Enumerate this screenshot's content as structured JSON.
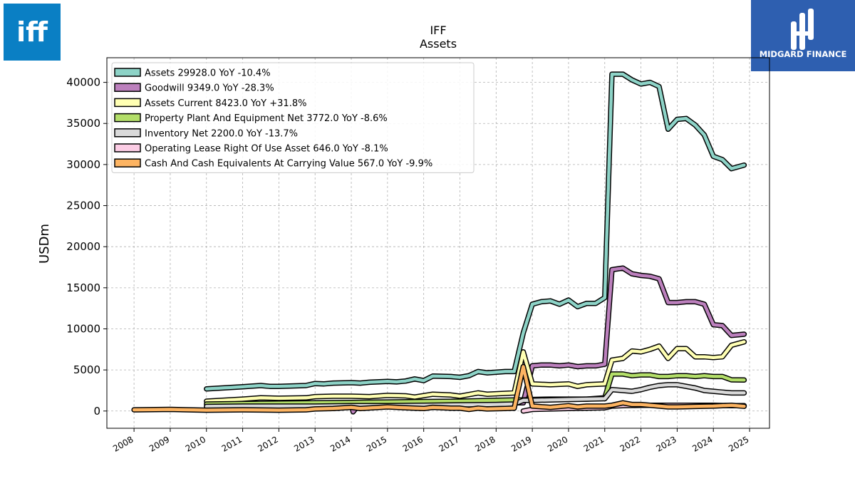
{
  "brand": {
    "left_logo_text": "iff",
    "left_logo_color": "#0a7fc4",
    "right_logo_text": "MIDGARD FINANCE",
    "right_logo_color": "#2e5fb0"
  },
  "chart_data": {
    "type": "line",
    "title": "IFF",
    "subtitle": "Assets",
    "xlabel": "",
    "ylabel": "USDm",
    "xlim": [
      2007.25,
      2025.55
    ],
    "ylim": [
      -2100,
      43000
    ],
    "grid": true,
    "legend_position": "top-left",
    "x_ticks": [
      "2008",
      "2009",
      "2010",
      "2011",
      "2012",
      "2013",
      "2014",
      "2015",
      "2016",
      "2017",
      "2018",
      "2019",
      "2020",
      "2021",
      "2022",
      "2023",
      "2024",
      "2025"
    ],
    "y_ticks": [
      0,
      5000,
      10000,
      15000,
      20000,
      25000,
      30000,
      35000,
      40000
    ],
    "series": [
      {
        "name": "Assets",
        "legend": "Assets  29928.0 YoY -10.4%",
        "color": "#8dd3c7",
        "points": [
          [
            2010.0,
            2700
          ],
          [
            2011.0,
            2950
          ],
          [
            2011.5,
            3100
          ],
          [
            2011.75,
            3000
          ],
          [
            2012.0,
            3000
          ],
          [
            2012.75,
            3100
          ],
          [
            2013.0,
            3350
          ],
          [
            2013.25,
            3300
          ],
          [
            2013.5,
            3400
          ],
          [
            2014.0,
            3450
          ],
          [
            2014.25,
            3400
          ],
          [
            2014.5,
            3500
          ],
          [
            2015.0,
            3600
          ],
          [
            2015.25,
            3550
          ],
          [
            2015.5,
            3650
          ],
          [
            2015.75,
            3900
          ],
          [
            2016.0,
            3700
          ],
          [
            2016.25,
            4250
          ],
          [
            2016.75,
            4200
          ],
          [
            2017.0,
            4100
          ],
          [
            2017.25,
            4300
          ],
          [
            2017.5,
            4800
          ],
          [
            2017.75,
            4650
          ],
          [
            2018.25,
            4800
          ],
          [
            2018.5,
            4800
          ],
          [
            2018.75,
            9500
          ],
          [
            2019.0,
            13000
          ],
          [
            2019.25,
            13300
          ],
          [
            2019.5,
            13400
          ],
          [
            2019.75,
            13000
          ],
          [
            2020.0,
            13500
          ],
          [
            2020.25,
            12700
          ],
          [
            2020.5,
            13100
          ],
          [
            2020.75,
            13100
          ],
          [
            2021.0,
            13800
          ],
          [
            2021.2,
            41000
          ],
          [
            2021.5,
            41000
          ],
          [
            2021.75,
            40300
          ],
          [
            2022.0,
            39800
          ],
          [
            2022.25,
            40000
          ],
          [
            2022.5,
            39500
          ],
          [
            2022.75,
            34300
          ],
          [
            2023.0,
            35500
          ],
          [
            2023.25,
            35600
          ],
          [
            2023.5,
            34800
          ],
          [
            2023.75,
            33600
          ],
          [
            2024.0,
            31000
          ],
          [
            2024.25,
            30600
          ],
          [
            2024.5,
            29500
          ],
          [
            2024.85,
            29928
          ]
        ]
      },
      {
        "name": "Goodwill",
        "legend": "Goodwill  9349.0 YoY -28.3%",
        "color": "#bc80bd",
        "points": [
          [
            2013.0,
            1000
          ],
          [
            2014.0,
            1000
          ],
          [
            2014.05,
            -100
          ],
          [
            2014.25,
            1000
          ],
          [
            2015.0,
            1000
          ],
          [
            2016.0,
            1000
          ],
          [
            2017.0,
            1000
          ],
          [
            2018.0,
            1000
          ],
          [
            2018.5,
            1000
          ],
          [
            2018.75,
            1000
          ],
          [
            2019.0,
            5500
          ],
          [
            2019.25,
            5600
          ],
          [
            2019.5,
            5600
          ],
          [
            2019.75,
            5500
          ],
          [
            2020.0,
            5600
          ],
          [
            2020.25,
            5400
          ],
          [
            2020.5,
            5500
          ],
          [
            2020.75,
            5500
          ],
          [
            2021.0,
            5700
          ],
          [
            2021.2,
            17200
          ],
          [
            2021.5,
            17400
          ],
          [
            2021.75,
            16700
          ],
          [
            2022.0,
            16500
          ],
          [
            2022.25,
            16400
          ],
          [
            2022.5,
            16100
          ],
          [
            2022.75,
            13200
          ],
          [
            2023.0,
            13200
          ],
          [
            2023.25,
            13300
          ],
          [
            2023.5,
            13300
          ],
          [
            2023.75,
            13000
          ],
          [
            2024.0,
            10500
          ],
          [
            2024.25,
            10400
          ],
          [
            2024.5,
            9200
          ],
          [
            2024.85,
            9349
          ]
        ]
      },
      {
        "name": "Assets Current",
        "legend": "Assets Current  8423.0 YoY +31.8%",
        "color": "#ffffb3",
        "points": [
          [
            2010.0,
            1200
          ],
          [
            2011.0,
            1450
          ],
          [
            2011.5,
            1600
          ],
          [
            2012.0,
            1550
          ],
          [
            2012.75,
            1600
          ],
          [
            2013.0,
            1750
          ],
          [
            2013.5,
            1800
          ],
          [
            2014.0,
            1800
          ],
          [
            2014.5,
            1750
          ],
          [
            2015.0,
            1900
          ],
          [
            2015.5,
            1850
          ],
          [
            2015.75,
            1700
          ],
          [
            2016.25,
            2050
          ],
          [
            2016.75,
            1950
          ],
          [
            2017.0,
            1800
          ],
          [
            2017.5,
            2200
          ],
          [
            2017.75,
            2050
          ],
          [
            2018.5,
            2200
          ],
          [
            2018.75,
            7200
          ],
          [
            2019.0,
            3300
          ],
          [
            2019.5,
            3200
          ],
          [
            2020.0,
            3300
          ],
          [
            2020.25,
            3000
          ],
          [
            2020.5,
            3200
          ],
          [
            2021.0,
            3300
          ],
          [
            2021.2,
            6200
          ],
          [
            2021.5,
            6400
          ],
          [
            2021.75,
            7300
          ],
          [
            2022.0,
            7200
          ],
          [
            2022.25,
            7500
          ],
          [
            2022.5,
            7900
          ],
          [
            2022.75,
            6400
          ],
          [
            2023.0,
            7600
          ],
          [
            2023.25,
            7600
          ],
          [
            2023.5,
            6600
          ],
          [
            2023.75,
            6600
          ],
          [
            2024.0,
            6500
          ],
          [
            2024.25,
            6600
          ],
          [
            2024.5,
            8000
          ],
          [
            2024.85,
            8423
          ]
        ]
      },
      {
        "name": "Property Plant And Equipment Net",
        "legend": "Property Plant And Equipment Net  3772.0 YoY -8.6%",
        "color": "#b3de69",
        "points": [
          [
            2010.0,
            850
          ],
          [
            2011.0,
            900
          ],
          [
            2012.0,
            950
          ],
          [
            2013.0,
            1000
          ],
          [
            2014.0,
            1050
          ],
          [
            2015.0,
            1100
          ],
          [
            2016.0,
            1150
          ],
          [
            2017.0,
            1200
          ],
          [
            2018.0,
            1300
          ],
          [
            2018.5,
            1350
          ],
          [
            2018.75,
            1350
          ],
          [
            2019.0,
            1400
          ],
          [
            2019.5,
            1450
          ],
          [
            2020.0,
            1450
          ],
          [
            2020.5,
            1450
          ],
          [
            2021.0,
            1600
          ],
          [
            2021.2,
            4500
          ],
          [
            2021.5,
            4500
          ],
          [
            2021.75,
            4300
          ],
          [
            2022.0,
            4400
          ],
          [
            2022.25,
            4400
          ],
          [
            2022.5,
            4200
          ],
          [
            2022.75,
            4200
          ],
          [
            2023.0,
            4300
          ],
          [
            2023.25,
            4300
          ],
          [
            2023.5,
            4200
          ],
          [
            2023.75,
            4300
          ],
          [
            2024.0,
            4200
          ],
          [
            2024.25,
            4200
          ],
          [
            2024.5,
            3800
          ],
          [
            2024.85,
            3772
          ]
        ]
      },
      {
        "name": "Inventory Net",
        "legend": "Inventory Net  2200.0 YoY -13.7%",
        "color": "#d9d9d9",
        "points": [
          [
            2010.0,
            550
          ],
          [
            2011.0,
            600
          ],
          [
            2012.0,
            600
          ],
          [
            2013.0,
            600
          ],
          [
            2014.0,
            650
          ],
          [
            2015.0,
            650
          ],
          [
            2016.0,
            700
          ],
          [
            2017.0,
            750
          ],
          [
            2018.0,
            800
          ],
          [
            2018.5,
            850
          ],
          [
            2018.75,
            1300
          ],
          [
            2019.0,
            1300
          ],
          [
            2019.5,
            1350
          ],
          [
            2020.0,
            1400
          ],
          [
            2020.5,
            1450
          ],
          [
            2021.0,
            1500
          ],
          [
            2021.2,
            2600
          ],
          [
            2021.5,
            2500
          ],
          [
            2021.75,
            2400
          ],
          [
            2022.0,
            2600
          ],
          [
            2022.25,
            2900
          ],
          [
            2022.5,
            3100
          ],
          [
            2022.75,
            3200
          ],
          [
            2023.0,
            3200
          ],
          [
            2023.25,
            3000
          ],
          [
            2023.5,
            2800
          ],
          [
            2023.75,
            2500
          ],
          [
            2024.0,
            2400
          ],
          [
            2024.25,
            2300
          ],
          [
            2024.5,
            2200
          ],
          [
            2024.85,
            2200
          ]
        ]
      },
      {
        "name": "Operating Lease Right Of Use Asset",
        "legend": "Operating Lease Right Of Use Asset  646.0 YoY -8.1%",
        "color": "#fccde5",
        "points": [
          [
            2018.75,
            0
          ],
          [
            2019.0,
            200
          ],
          [
            2019.5,
            250
          ],
          [
            2020.0,
            300
          ],
          [
            2020.5,
            350
          ],
          [
            2021.0,
            400
          ],
          [
            2021.2,
            600
          ],
          [
            2021.5,
            650
          ],
          [
            2022.0,
            700
          ],
          [
            2022.5,
            700
          ],
          [
            2023.0,
            700
          ],
          [
            2023.5,
            700
          ],
          [
            2024.0,
            700
          ],
          [
            2024.5,
            650
          ],
          [
            2024.85,
            646
          ]
        ]
      },
      {
        "name": "Cash And Cash Equivalents At Carrying Value",
        "legend": "Cash And Cash Equivalents At Carrying Value  567.0 YoY -9.9%",
        "color": "#fdb462",
        "points": [
          [
            2008.0,
            150
          ],
          [
            2009.0,
            200
          ],
          [
            2010.0,
            100
          ],
          [
            2011.0,
            150
          ],
          [
            2012.0,
            100
          ],
          [
            2012.75,
            150
          ],
          [
            2013.0,
            250
          ],
          [
            2013.5,
            300
          ],
          [
            2014.0,
            450
          ],
          [
            2014.25,
            300
          ],
          [
            2015.0,
            500
          ],
          [
            2015.5,
            400
          ],
          [
            2016.0,
            300
          ],
          [
            2016.25,
            450
          ],
          [
            2016.75,
            350
          ],
          [
            2017.0,
            350
          ],
          [
            2017.25,
            200
          ],
          [
            2017.5,
            350
          ],
          [
            2017.75,
            250
          ],
          [
            2018.25,
            300
          ],
          [
            2018.5,
            350
          ],
          [
            2018.75,
            5400
          ],
          [
            2019.0,
            600
          ],
          [
            2019.5,
            450
          ],
          [
            2020.0,
            650
          ],
          [
            2020.25,
            500
          ],
          [
            2020.5,
            600
          ],
          [
            2021.0,
            600
          ],
          [
            2021.2,
            700
          ],
          [
            2021.5,
            1000
          ],
          [
            2021.75,
            800
          ],
          [
            2022.0,
            800
          ],
          [
            2022.5,
            600
          ],
          [
            2022.75,
            500
          ],
          [
            2023.0,
            500
          ],
          [
            2023.5,
            550
          ],
          [
            2024.0,
            600
          ],
          [
            2024.5,
            700
          ],
          [
            2024.85,
            567
          ]
        ]
      }
    ]
  }
}
